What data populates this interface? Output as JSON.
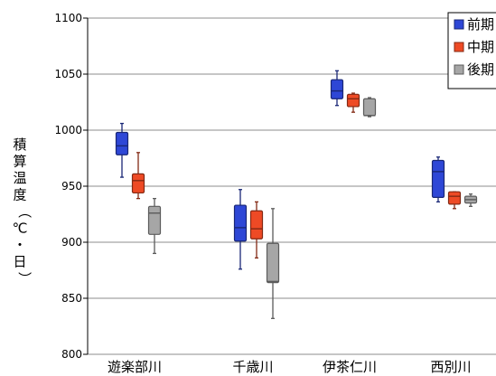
{
  "chart_data": {
    "type": "boxplot",
    "ylabel": "積算温度（℃・日）",
    "ylim": [
      800,
      1100
    ],
    "yticks": [
      800,
      850,
      900,
      950,
      1000,
      1050,
      1100
    ],
    "grid": "horizontal",
    "legend_position": "top-right",
    "categories": [
      "遊楽部川",
      "千歳川",
      "伊茶仁川",
      "西別川"
    ],
    "series": [
      {
        "name": "前期",
        "color": "#2e47d6",
        "boxes": [
          {
            "min": 958,
            "q1": 978,
            "median": 986,
            "q3": 998,
            "max": 1006
          },
          {
            "min": 876,
            "q1": 901,
            "median": 913,
            "q3": 933,
            "max": 947
          },
          {
            "min": 1022,
            "q1": 1028,
            "median": 1035,
            "q3": 1045,
            "max": 1053
          },
          {
            "min": 936,
            "q1": 940,
            "median": 963,
            "q3": 973,
            "max": 976
          }
        ]
      },
      {
        "name": "中期",
        "color": "#ee4a25",
        "boxes": [
          {
            "min": 939,
            "q1": 944,
            "median": 955,
            "q3": 961,
            "max": 980
          },
          {
            "min": 886,
            "q1": 903,
            "median": 912,
            "q3": 928,
            "max": 936
          },
          {
            "min": 1016,
            "q1": 1021,
            "median": 1028,
            "q3": 1032,
            "max": 1033
          },
          {
            "min": 930,
            "q1": 934,
            "median": 941,
            "q3": 945,
            "max": 945
          }
        ]
      },
      {
        "name": "後期",
        "color": "#a6a6a6",
        "boxes": [
          {
            "min": 890,
            "q1": 907,
            "median": 926,
            "q3": 932,
            "max": 939
          },
          {
            "min": 832,
            "q1": 864,
            "median": 865,
            "q3": 899,
            "max": 930
          },
          {
            "min": 1012,
            "q1": 1013,
            "median": 1013,
            "q3": 1028,
            "max": 1029
          },
          {
            "min": 932,
            "q1": 935,
            "median": 938,
            "q3": 941,
            "max": 943
          }
        ]
      }
    ]
  }
}
